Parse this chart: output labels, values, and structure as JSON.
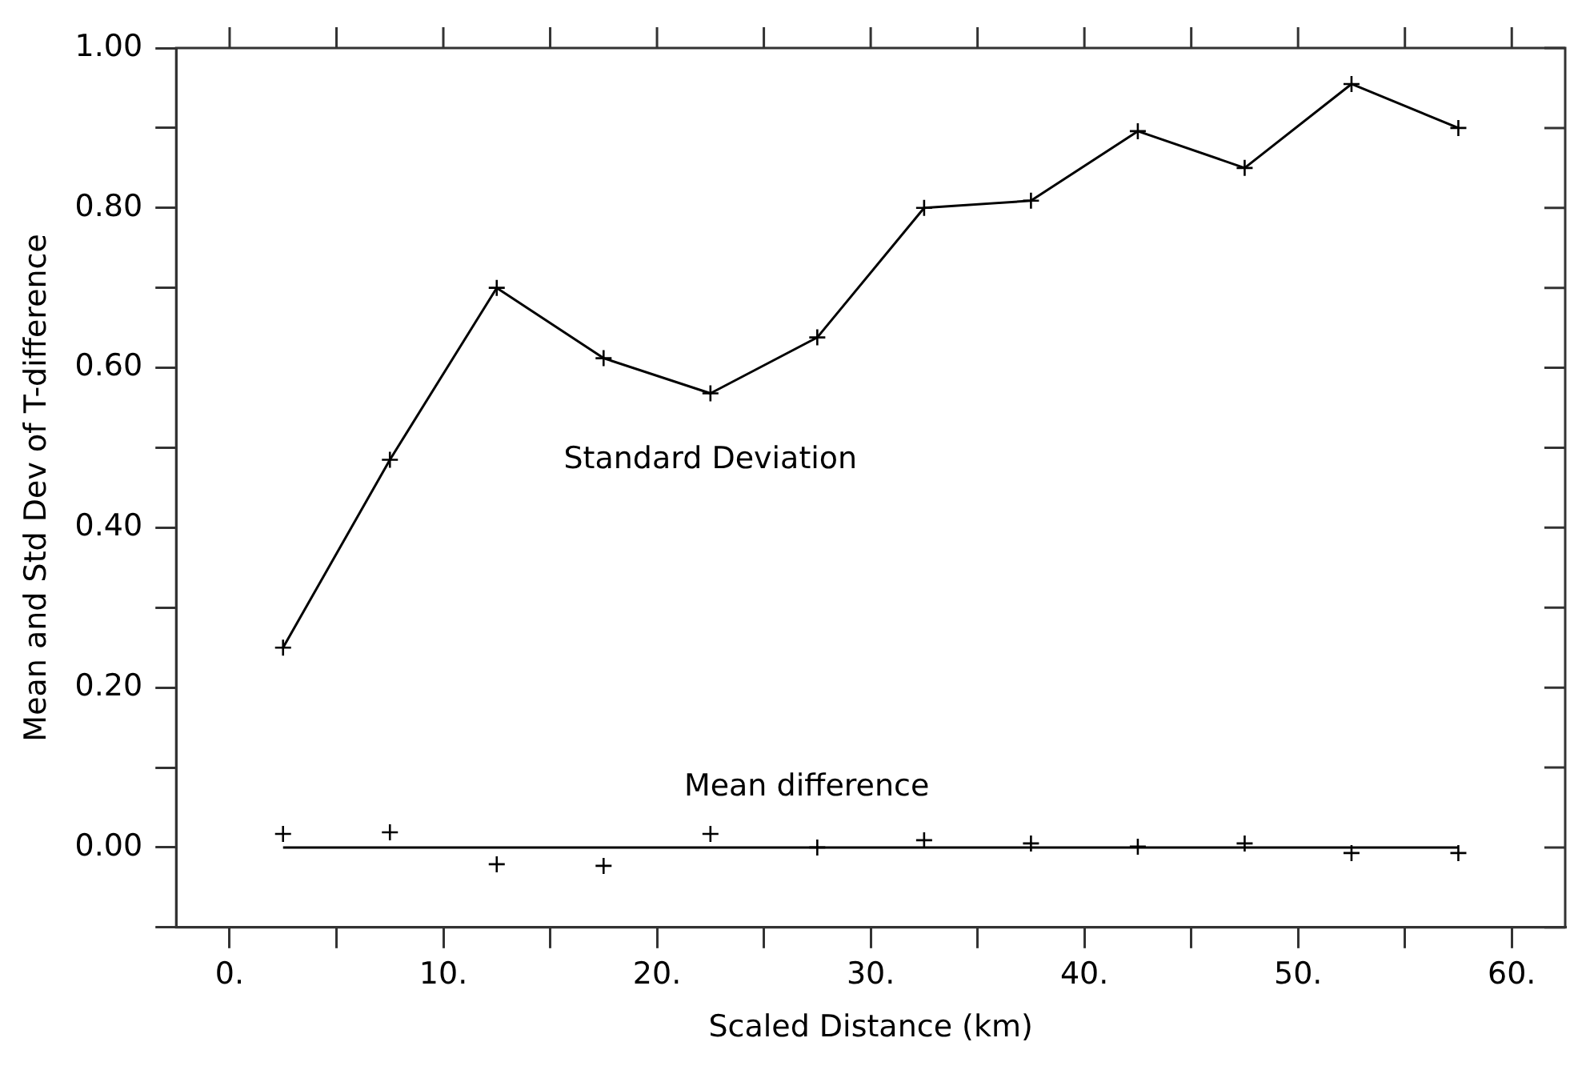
{
  "chart_data": {
    "type": "line",
    "xlabel": "Scaled Distance (km)",
    "ylabel": "Mean and Std Dev of T-difference",
    "x": [
      2.5,
      7.5,
      12.5,
      17.5,
      22.5,
      27.5,
      32.5,
      37.5,
      42.5,
      47.5,
      52.5,
      57.5
    ],
    "series": [
      {
        "name": "Standard Deviation",
        "color": "#000000",
        "marker": "cross",
        "values": [
          0.25,
          0.485,
          0.7,
          0.612,
          0.568,
          0.638,
          0.8,
          0.809,
          0.896,
          0.85,
          0.955,
          0.9
        ]
      },
      {
        "type": "scatter",
        "name": "Mean difference",
        "color": "#000000",
        "marker": "cross",
        "values": [
          0.017,
          0.019,
          -0.021,
          -0.023,
          0.017,
          0.0,
          0.009,
          0.005,
          0.001,
          0.005,
          -0.007,
          -0.007
        ]
      },
      {
        "color": "#000000",
        "marker": "none",
        "x": [
          2.5,
          57.5
        ],
        "values": [
          0,
          0
        ]
      }
    ],
    "xlim": [
      -2.5,
      62.5
    ],
    "xticks": [
      {
        "value": 0,
        "label": "0."
      },
      {
        "value": 5,
        "label": null
      },
      {
        "value": 10,
        "label": "10."
      },
      {
        "value": 15,
        "label": null
      },
      {
        "value": 20,
        "label": "20."
      },
      {
        "value": 25,
        "label": null
      },
      {
        "value": 30,
        "label": "30."
      },
      {
        "value": 35,
        "label": null
      },
      {
        "value": 40,
        "label": "40."
      },
      {
        "value": 45,
        "label": null
      },
      {
        "value": 50,
        "label": "50."
      },
      {
        "value": 55,
        "label": null
      },
      {
        "value": 60,
        "label": "60."
      }
    ],
    "ylim": [
      -0.1,
      1.0
    ],
    "yticks": [
      {
        "value": -0.1,
        "label": null
      },
      {
        "value": 0,
        "label": "0.00"
      },
      {
        "value": 0.1,
        "label": null
      },
      {
        "value": 0.2,
        "label": "0.20"
      },
      {
        "value": 0.3,
        "label": null
      },
      {
        "value": 0.4,
        "label": "0.40"
      },
      {
        "value": 0.5,
        "label": null
      },
      {
        "value": 0.6,
        "label": "0.60"
      },
      {
        "value": 0.7,
        "label": null
      },
      {
        "value": 0.8,
        "label": "0.80"
      },
      {
        "value": 0.9,
        "label": null
      },
      {
        "value": 1.0,
        "label": "1.00"
      }
    ],
    "grid": false,
    "legend": false
  }
}
